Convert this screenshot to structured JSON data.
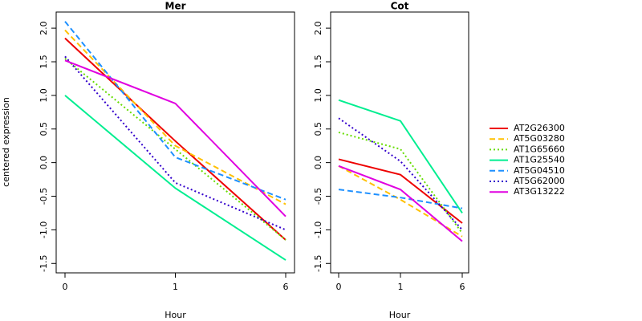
{
  "chart_data": [
    {
      "type": "line",
      "title": "Mer",
      "x_label": "Hour",
      "y_label": "centered expression",
      "categories": [
        "0",
        "1",
        "6"
      ],
      "ylim": [
        -1.64,
        2.24
      ],
      "yticks": [
        -1.5,
        {
          "value": -1,
          "label": "-1.0"
        },
        -0.5,
        {
          "value": 0,
          "label": "0.0"
        },
        0.5,
        {
          "value": 1,
          "label": "1.0"
        },
        1.5,
        {
          "value": 2,
          "label": "2.0"
        }
      ],
      "series": [
        {
          "name": "AT2G26300",
          "color": "#ee0000",
          "dash": "solid",
          "values": [
            1.85,
            0.32,
            -1.15
          ]
        },
        {
          "name": "AT5G03280",
          "color": "#ffc000",
          "dash": "dashed",
          "values": [
            1.97,
            0.25,
            -0.62
          ]
        },
        {
          "name": "AT1G65660",
          "color": "#66dd00",
          "dash": "dotted",
          "values": [
            1.55,
            0.2,
            -1.15
          ]
        },
        {
          "name": "AT1G25540",
          "color": "#00ee90",
          "dash": "solid",
          "values": [
            1.0,
            -0.38,
            -1.45
          ]
        },
        {
          "name": "AT5G04510",
          "color": "#1e90ff",
          "dash": "dashed",
          "values": [
            2.1,
            0.08,
            -0.55
          ]
        },
        {
          "name": "AT5G62000",
          "color": "#3300cc",
          "dash": "dotted",
          "values": [
            1.58,
            -0.3,
            -1.0
          ]
        },
        {
          "name": "AT3G13222",
          "color": "#e000e0",
          "dash": "solid",
          "values": [
            1.52,
            0.88,
            -0.8
          ]
        }
      ]
    },
    {
      "type": "line",
      "title": "Cot",
      "x_label": "Hour",
      "categories": [
        "0",
        "1",
        "6"
      ],
      "ylim": [
        -1.64,
        2.24
      ],
      "yticks": [
        -1.5,
        {
          "value": -1,
          "label": "-1.0"
        },
        -0.5,
        {
          "value": 0,
          "label": "0.0"
        },
        0.5,
        {
          "value": 1,
          "label": "1.0"
        },
        1.5,
        {
          "value": 2,
          "label": "2.0"
        }
      ],
      "series": [
        {
          "color": "#ee0000",
          "dash": "solid",
          "values": [
            0.05,
            -0.18,
            -0.9
          ]
        },
        {
          "color": "#ffc000",
          "dash": "dashed",
          "values": [
            -0.05,
            -0.55,
            -1.1
          ]
        },
        {
          "color": "#66dd00",
          "dash": "dotted",
          "values": [
            0.45,
            0.2,
            -1.05
          ]
        },
        {
          "color": "#00ee90",
          "dash": "solid",
          "values": [
            0.93,
            0.62,
            -0.75
          ]
        },
        {
          "color": "#1e90ff",
          "dash": "dashed",
          "values": [
            -0.4,
            -0.52,
            -0.68
          ]
        },
        {
          "color": "#3300cc",
          "dash": "dotted",
          "values": [
            0.66,
            0.02,
            -1.0
          ]
        },
        {
          "color": "#e000e0",
          "dash": "solid",
          "values": [
            -0.05,
            -0.4,
            -1.17
          ]
        }
      ]
    }
  ]
}
